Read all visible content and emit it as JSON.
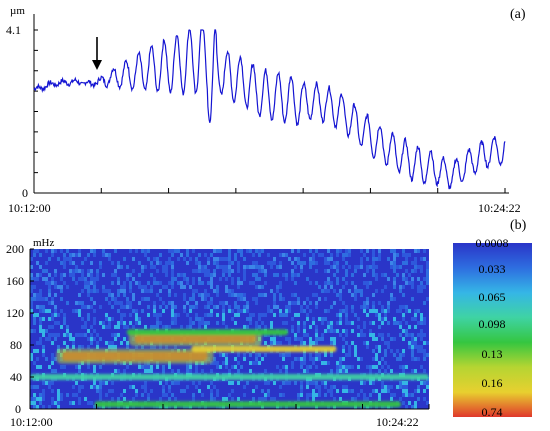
{
  "chart_data": [
    {
      "type": "line",
      "panel_label": "(a)",
      "ylabel": "µm",
      "ylim": [
        0,
        4.1
      ],
      "y_ticks": [
        "4.1",
        "0"
      ],
      "x_ticks": [
        "10:12:00",
        "10:24:22"
      ],
      "series": [
        {
          "color": "#1414d2",
          "points": [
            [
              "10:12:00",
              2.6
            ],
            [
              "10:12:30",
              2.75
            ],
            [
              "10:13:00",
              2.8
            ],
            [
              "10:13:30",
              2.75
            ],
            [
              "10:13:45",
              2.8
            ],
            [
              "10:14:00",
              2.9
            ],
            [
              "10:14:30",
              3.0
            ],
            [
              "10:15:00",
              3.1
            ],
            [
              "10:15:30",
              3.2
            ],
            [
              "10:16:00",
              3.3
            ],
            [
              "10:16:30",
              3.4
            ],
            [
              "10:17:00",
              3.0
            ],
            [
              "10:17:30",
              2.8
            ],
            [
              "10:18:00",
              2.5
            ],
            [
              "10:18:30",
              2.4
            ],
            [
              "10:19:00",
              2.3
            ],
            [
              "10:19:30",
              2.3
            ],
            [
              "10:20:00",
              2.1
            ],
            [
              "10:20:30",
              1.7
            ],
            [
              "10:21:00",
              1.3
            ],
            [
              "10:21:30",
              1.0
            ],
            [
              "10:22:00",
              0.75
            ],
            [
              "10:22:30",
              0.6
            ],
            [
              "10:23:00",
              0.45
            ],
            [
              "10:23:30",
              0.8
            ],
            [
              "10:24:00",
              1.05
            ],
            [
              "10:24:22",
              1.1
            ]
          ]
        }
      ],
      "annotations": [
        {
          "type": "arrow",
          "x": "10:13:35"
        }
      ]
    },
    {
      "type": "heatmap",
      "panel_label": "(b)",
      "ylabel": "mHz",
      "ylim": [
        0,
        200
      ],
      "y_ticks": [
        "200",
        "160",
        "120",
        "80",
        "40",
        "0"
      ],
      "x_ticks": [
        "10:12:00",
        "10:24:22"
      ],
      "colorbar": {
        "labels": [
          "0.0008",
          "0.033",
          "0.065",
          "0.098",
          "0.13",
          "0.16",
          "0.74"
        ],
        "colors": [
          "#2a35c8",
          "#2e6ee0",
          "#35b6e6",
          "#3fd3a3",
          "#35c640",
          "#b6d532",
          "#e8d02f",
          "#e0382c"
        ]
      },
      "bands": [
        {
          "freq": 6,
          "start": "10:14:00",
          "end": "10:23:30",
          "color": "#35c640"
        },
        {
          "freq": 66,
          "start": "10:13:00",
          "end": "10:17:30",
          "color": "#e0382c"
        },
        {
          "freq": 88,
          "start": "10:15:15",
          "end": "10:19:00",
          "color": "#e0382c"
        },
        {
          "freq": 75,
          "start": "10:17:00",
          "end": "10:21:30",
          "color": "#e8d02f"
        },
        {
          "freq": 96,
          "start": "10:15:00",
          "end": "10:20:00",
          "color": "#35c640"
        },
        {
          "freq": 40,
          "start": "10:12:00",
          "end": "10:24:22",
          "color": "#3fd3a3"
        }
      ]
    }
  ]
}
